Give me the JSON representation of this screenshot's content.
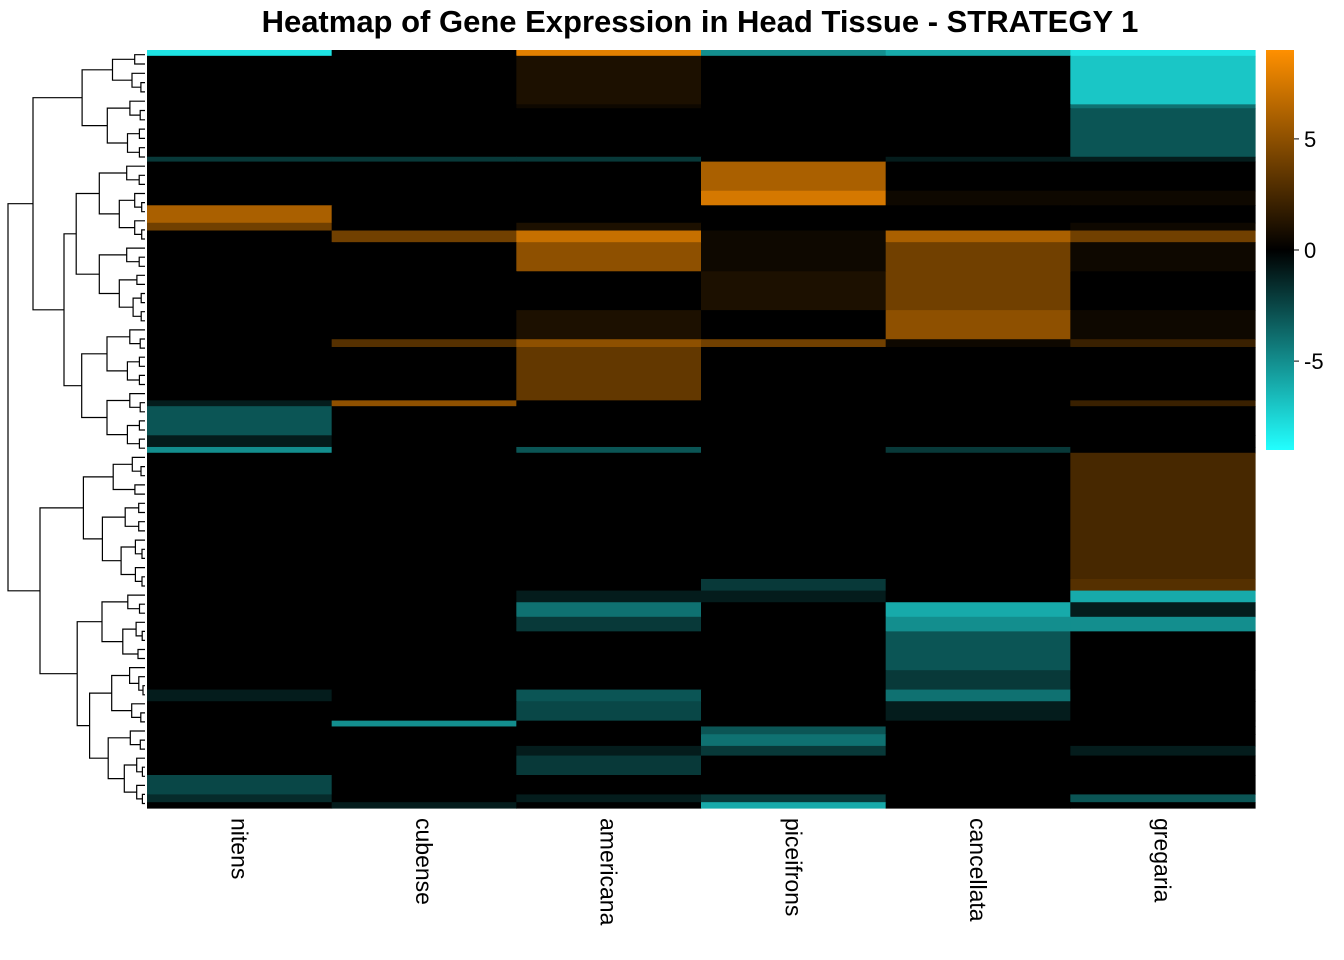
{
  "chart_data": {
    "type": "heatmap",
    "title": "Heatmap of Gene Expression in Head Tissue - STRATEGY 1",
    "columns": [
      "nitens",
      "cubense",
      "americana",
      "piceifrons",
      "cancellata",
      "gregaria"
    ],
    "colorbar": {
      "ticks": [
        5,
        0,
        -5
      ],
      "range": [
        -9,
        9
      ],
      "colors": {
        "low": "#22ffff",
        "mid": "#000000",
        "high": "#ff9000"
      }
    },
    "row_blocks": [
      {
        "rows": 6,
        "values": [
          -8,
          0,
          8,
          -5,
          -6,
          -8
        ]
      },
      {
        "rows": 50,
        "values": [
          0,
          0,
          1,
          0,
          0,
          -7
        ]
      },
      {
        "rows": 4,
        "values": [
          0,
          0,
          0.5,
          0,
          0,
          -4
        ]
      },
      {
        "rows": 50,
        "values": [
          0,
          0,
          0,
          0,
          0,
          -3
        ]
      },
      {
        "rows": 5,
        "values": [
          -2,
          -2,
          -2,
          0,
          -1,
          -1
        ]
      },
      {
        "rows": 30,
        "values": [
          0,
          0,
          0,
          6,
          0,
          0
        ]
      },
      {
        "rows": 15,
        "values": [
          0,
          0,
          0,
          7.5,
          0.5,
          0.5
        ]
      },
      {
        "rows": 18,
        "values": [
          6,
          0,
          0,
          0,
          0,
          0
        ]
      },
      {
        "rows": 8,
        "values": [
          4,
          0,
          1,
          0,
          0,
          0.5
        ]
      },
      {
        "rows": 12,
        "values": [
          0,
          4,
          7,
          0.5,
          6,
          4
        ]
      },
      {
        "rows": 30,
        "values": [
          0,
          0,
          5,
          0.5,
          4,
          0.5
        ]
      },
      {
        "rows": 40,
        "values": [
          0,
          0,
          0,
          1,
          4,
          0
        ]
      },
      {
        "rows": 30,
        "values": [
          0,
          0,
          1,
          0,
          5,
          0.5
        ]
      },
      {
        "rows": 8,
        "values": [
          0,
          3,
          5,
          4,
          0.5,
          2
        ]
      },
      {
        "rows": 55,
        "values": [
          0,
          0,
          3.5,
          0,
          0,
          0
        ]
      },
      {
        "rows": 6,
        "values": [
          -1,
          5,
          0,
          0,
          0,
          2
        ]
      },
      {
        "rows": 30,
        "values": [
          -3,
          0,
          0,
          0,
          0,
          0
        ]
      },
      {
        "rows": 12,
        "values": [
          -1,
          0,
          0,
          0,
          0,
          0
        ]
      },
      {
        "rows": 6,
        "values": [
          -5,
          0,
          -3,
          0,
          -2,
          0
        ]
      },
      {
        "rows": 130,
        "values": [
          0,
          0,
          0,
          0,
          0,
          2.5
        ]
      },
      {
        "rows": 12,
        "values": [
          0,
          0,
          0,
          -2,
          0,
          3
        ]
      },
      {
        "rows": 12,
        "values": [
          0,
          0,
          -1,
          -1,
          0,
          -6
        ]
      },
      {
        "rows": 15,
        "values": [
          0,
          0,
          -4,
          0,
          -6,
          -1
        ]
      },
      {
        "rows": 15,
        "values": [
          0,
          0,
          -2,
          0,
          -5,
          -5
        ]
      },
      {
        "rows": 40,
        "values": [
          0,
          0,
          0,
          0,
          -3,
          0
        ]
      },
      {
        "rows": 20,
        "values": [
          0,
          0,
          0,
          0,
          -2,
          0
        ]
      },
      {
        "rows": 12,
        "values": [
          -1,
          0,
          -3,
          0,
          -4,
          0
        ]
      },
      {
        "rows": 20,
        "values": [
          0,
          0,
          -2.5,
          0,
          -1,
          0
        ]
      },
      {
        "rows": 6,
        "values": [
          0,
          -5,
          0,
          0,
          0,
          0
        ]
      },
      {
        "rows": 8,
        "values": [
          0,
          0,
          0,
          -3,
          0,
          0
        ]
      },
      {
        "rows": 12,
        "values": [
          0,
          0,
          0,
          -4,
          0,
          0
        ]
      },
      {
        "rows": 10,
        "values": [
          0,
          0,
          -1,
          -2,
          0,
          -1
        ]
      },
      {
        "rows": 20,
        "values": [
          0,
          0,
          -2,
          0,
          0,
          0
        ]
      },
      {
        "rows": 20,
        "values": [
          -2.5,
          0,
          0,
          0,
          0,
          0
        ]
      },
      {
        "rows": 8,
        "values": [
          -1.5,
          0,
          -1,
          -2,
          0,
          -3
        ]
      },
      {
        "rows": 6,
        "values": [
          0,
          -1,
          0,
          -6,
          0,
          0
        ]
      }
    ]
  }
}
